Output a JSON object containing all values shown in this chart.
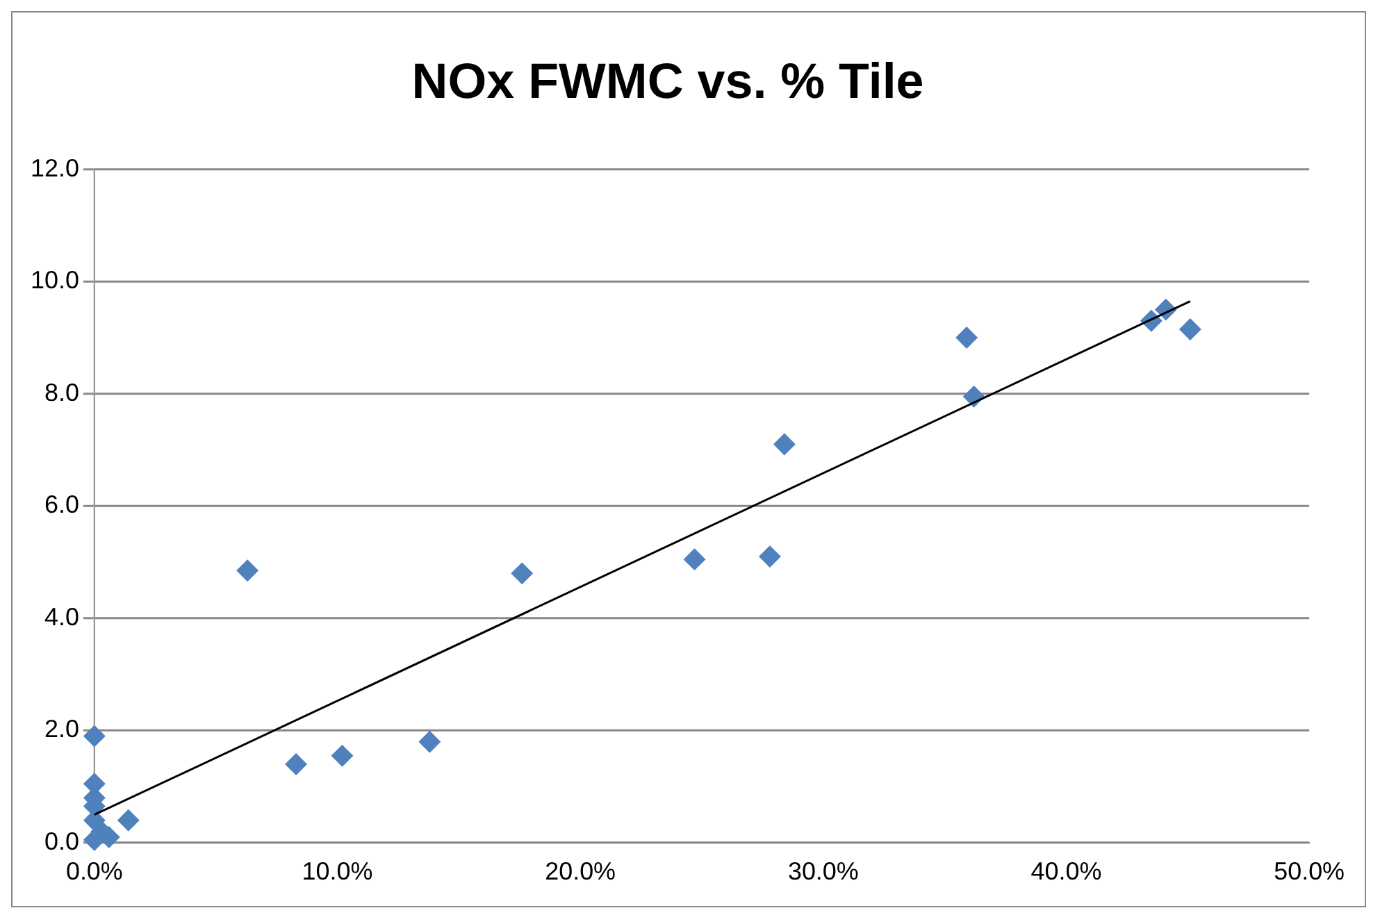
{
  "chart_data": {
    "type": "scatter",
    "title": "NOx FWMC vs. % Tile",
    "series": [
      {
        "color": "#4f81bd",
        "marker": "diamond",
        "x": [
          0,
          0,
          0,
          0,
          0,
          0,
          0.3,
          0.6,
          1.4,
          6.3,
          8.3,
          10.2,
          13.8,
          17.6,
          24.7,
          27.8,
          28.4,
          35.9,
          36.2,
          43.5,
          44.1,
          45.1
        ],
        "values": [
          1.9,
          1.05,
          0.8,
          0.65,
          0.4,
          0.05,
          0.2,
          0.1,
          0.4,
          4.85,
          1.4,
          1.55,
          1.8,
          4.8,
          5.05,
          5.1,
          7.1,
          9.0,
          7.95,
          9.3,
          9.5,
          9.15
        ]
      },
      {
        "type": "line",
        "color": "#000000",
        "marker": "none",
        "x": [
          0,
          45.1
        ],
        "values": [
          0.5,
          9.65
        ]
      }
    ],
    "xlim": [
      0,
      50
    ],
    "xticks": [
      {
        "value": 0,
        "label": "0.0%"
      },
      {
        "value": 10,
        "label": "10.0%"
      },
      {
        "value": 20,
        "label": "20.0%"
      },
      {
        "value": 30,
        "label": "30.0%"
      },
      {
        "value": 40,
        "label": "40.0%"
      },
      {
        "value": 50,
        "label": "50.0%"
      }
    ],
    "ylim": [
      0,
      12
    ],
    "yticks": [
      {
        "value": 0,
        "label": "0.0"
      },
      {
        "value": 2,
        "label": "2.0"
      },
      {
        "value": 4,
        "label": "4.0"
      },
      {
        "value": 6,
        "label": "6.0"
      },
      {
        "value": 8,
        "label": "8.0"
      },
      {
        "value": 10,
        "label": "10.0"
      },
      {
        "value": 12,
        "label": "12.0"
      }
    ],
    "grid": "y",
    "legend": false
  }
}
